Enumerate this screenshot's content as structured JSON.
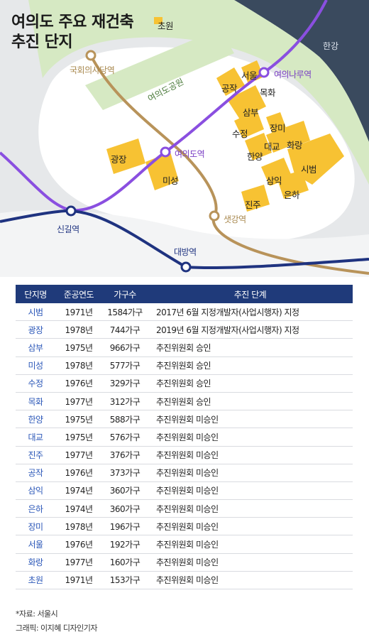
{
  "map": {
    "title": "여의도 주요 재건축\n추진 단지",
    "river": "한강",
    "park": "여의도공원",
    "stations": {
      "national_assembly": "국회의사당역",
      "yeouinaru": "여의나루역",
      "yeouido": "여의도역",
      "singil": "신길역",
      "saetgang": "샛강역",
      "daebang": "대방역"
    },
    "complexes": [
      "초원",
      "서울",
      "공작",
      "목화",
      "삼부",
      "수정",
      "장미",
      "대교",
      "화랑",
      "한양",
      "시범",
      "광장",
      "미성",
      "삼익",
      "은하",
      "진주"
    ],
    "colors": {
      "complex": "#f7c233",
      "line9": "#b8935a",
      "line5": "#8a4fe0",
      "line1": "#1f3380",
      "river": "#2f3e52",
      "park": "#d4e8c0"
    }
  },
  "table": {
    "headers": [
      "단지명",
      "준공연도",
      "가구수",
      "추진 단계"
    ],
    "rows": [
      {
        "name": "시범",
        "year": "1971년",
        "households": "1584가구",
        "stage": "2017년 6월 지정개발자(사업시행자) 지정"
      },
      {
        "name": "광장",
        "year": "1978년",
        "households": "744가구",
        "stage": "2019년 6월 지정개발자(사업시행자) 지정"
      },
      {
        "name": "삼부",
        "year": "1975년",
        "households": "966가구",
        "stage": "추진위원회 승인"
      },
      {
        "name": "미성",
        "year": "1978년",
        "households": "577가구",
        "stage": "추진위원회 승인"
      },
      {
        "name": "수정",
        "year": "1976년",
        "households": "329가구",
        "stage": "추진위원회 승인"
      },
      {
        "name": "목화",
        "year": "1977년",
        "households": "312가구",
        "stage": "추진위원회 승인"
      },
      {
        "name": "한양",
        "year": "1975년",
        "households": "588가구",
        "stage": "추진위원회 미승인"
      },
      {
        "name": "대교",
        "year": "1975년",
        "households": "576가구",
        "stage": "추진위원회 미승인"
      },
      {
        "name": "진주",
        "year": "1977년",
        "households": "376가구",
        "stage": "추진위원회 미승인"
      },
      {
        "name": "공작",
        "year": "1976년",
        "households": "373가구",
        "stage": "추진위원회 미승인"
      },
      {
        "name": "삼익",
        "year": "1974년",
        "households": "360가구",
        "stage": "추진위원회 미승인"
      },
      {
        "name": "은하",
        "year": "1974년",
        "households": "360가구",
        "stage": "추진위원회 미승인"
      },
      {
        "name": "장미",
        "year": "1978년",
        "households": "196가구",
        "stage": "추진위원회 미승인"
      },
      {
        "name": "서울",
        "year": "1976년",
        "households": "192가구",
        "stage": "추진위원회 미승인"
      },
      {
        "name": "화랑",
        "year": "1977년",
        "households": "160가구",
        "stage": "추진위원회 미승인"
      },
      {
        "name": "초원",
        "year": "1971년",
        "households": "153가구",
        "stage": "추진위원회 미승인"
      }
    ]
  },
  "footer": {
    "source": "*자료: 서울시",
    "credit": "그래픽: 이지혜 디자인기자"
  }
}
